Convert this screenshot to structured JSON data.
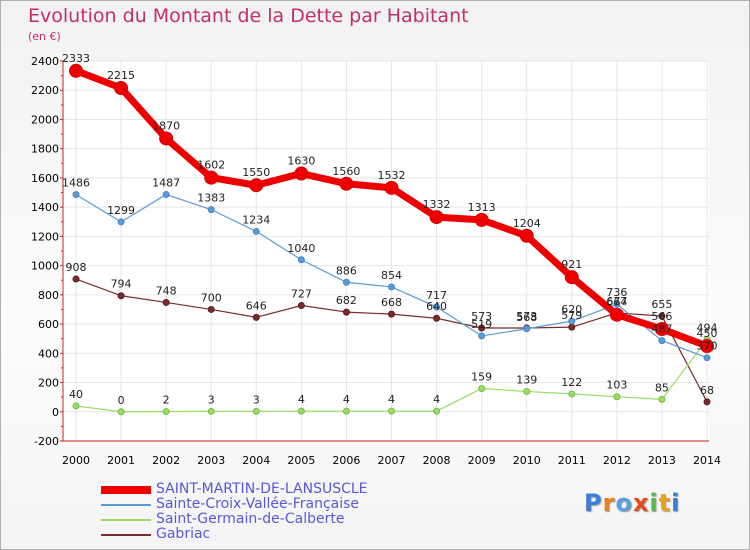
{
  "title": "Evolution du Montant de la Dette par Habitant",
  "unit": "(en €)",
  "logo": {
    "text": "Proxiti",
    "colors": [
      "#3a7ed8",
      "#e8821e",
      "#5aa0e0",
      "#e84a1e",
      "#58b848",
      "#e8a01e",
      "#3a7ed8"
    ]
  },
  "chart_data": {
    "type": "line",
    "x": [
      "2000",
      "2001",
      "2002",
      "2003",
      "2004",
      "2005",
      "2006",
      "2007",
      "2008",
      "2009",
      "2010",
      "2011",
      "2012",
      "2013",
      "2014"
    ],
    "ylim": [
      -200,
      2400
    ],
    "yticks": [
      -200,
      0,
      200,
      400,
      600,
      800,
      1000,
      1200,
      1400,
      1600,
      1800,
      2000,
      2200,
      2400
    ],
    "grid": true,
    "legend_position": "bottom-left",
    "series": [
      {
        "name": "SAINT-MARTIN-DE-LANSUSCLE",
        "color": "#ee0000",
        "values": [
          2333,
          2215,
          1870,
          1602,
          1550,
          1630,
          1560,
          1532,
          1332,
          1313,
          1204,
          921,
          664,
          566,
          450
        ]
      },
      {
        "name": "Sainte-Croix-Vallée-Française",
        "color": "#5b9bd5",
        "values": [
          1486,
          1299,
          1487,
          1383,
          1234,
          1040,
          886,
          854,
          717,
          519,
          568,
          620,
          736,
          487,
          370
        ]
      },
      {
        "name": "Saint-Germain-de-Calberte",
        "color": "#99dd66",
        "values": [
          40,
          0,
          2,
          3,
          3,
          4,
          4,
          4,
          4,
          159,
          139,
          122,
          103,
          85,
          494
        ]
      },
      {
        "name": "Gabriac",
        "color": "#7a2b2b",
        "values": [
          908,
          794,
          748,
          700,
          646,
          727,
          682,
          668,
          640,
          573,
          573,
          579,
          677,
          655,
          68
        ]
      }
    ]
  }
}
